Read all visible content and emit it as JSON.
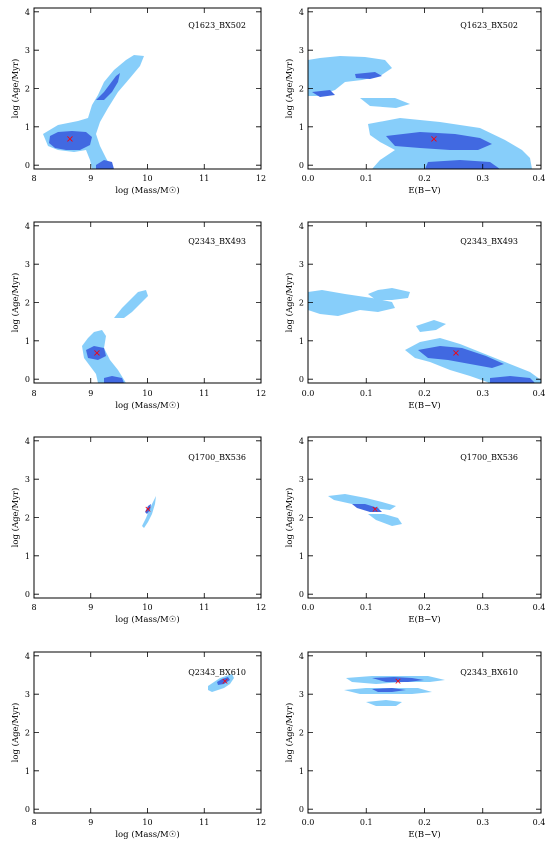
{
  "colors": {
    "contour_outer": "#87CEFA",
    "contour_inner": "#4169E1",
    "best_fit_marker": "#FF0000",
    "axes": "#000000"
  },
  "chart_data": [
    {
      "type": "scatter",
      "title": "Q1623_BX502",
      "xlabel": "log (Mass/M☉)",
      "ylabel": "log (Age/Myr)",
      "xlim": [
        8,
        12
      ],
      "ylim": [
        -0.1,
        4.1
      ],
      "xticks": [
        8,
        9,
        10,
        11,
        12
      ],
      "yticks": [
        0,
        1,
        2,
        3,
        4
      ],
      "best_fit": [
        8.65,
        0.72
      ],
      "contours_68": [
        [
          8.35,
          0.65
        ],
        [
          9.0,
          0.8
        ],
        [
          9.3,
          2.0
        ],
        [
          9.55,
          2.5
        ]
      ],
      "contours_95": [
        [
          8.3,
          0.7
        ],
        [
          9.3,
          1.95
        ],
        [
          9.8,
          2.5
        ],
        [
          9.6,
          0.1
        ]
      ]
    },
    {
      "type": "scatter",
      "title": "Q1623_BX502",
      "xlabel": "E(B−V)",
      "ylabel": "log (Age/Myr)",
      "xlim": [
        0.0,
        0.4
      ],
      "ylim": [
        -0.1,
        4.1
      ],
      "xticks": [
        0.0,
        0.1,
        0.2,
        0.3,
        0.4
      ],
      "yticks": [
        0,
        1,
        2,
        3,
        4
      ],
      "best_fit": [
        0.225,
        0.75
      ],
      "contours_68": [
        [
          0.22,
          0.72
        ],
        [
          0.12,
          2.5
        ],
        [
          0.02,
          1.9
        ]
      ],
      "contours_95": [
        [
          0.25,
          0.8
        ],
        [
          0.12,
          2.4
        ],
        [
          0.3,
          0.1
        ]
      ]
    },
    {
      "type": "scatter",
      "title": "Q2343_BX493",
      "xlabel": "log (Mass/M☉)",
      "ylabel": "log (Age/Myr)",
      "xlim": [
        8,
        12
      ],
      "ylim": [
        -0.1,
        4.1
      ],
      "xticks": [
        8,
        9,
        10,
        11,
        12
      ],
      "yticks": [
        0,
        1,
        2,
        3,
        4
      ],
      "best_fit": [
        9.1,
        0.78
      ],
      "contours_68": [
        [
          9.1,
          0.78
        ],
        [
          9.4,
          0.05
        ]
      ],
      "contours_95": [
        [
          9.15,
          0.9
        ],
        [
          9.75,
          2.0
        ]
      ]
    },
    {
      "type": "scatter",
      "title": "Q2343_BX493",
      "xlabel": "E(B−V)",
      "ylabel": "log (Age/Myr)",
      "xlim": [
        0.0,
        0.4
      ],
      "ylim": [
        -0.1,
        4.1
      ],
      "xticks": [
        0.0,
        0.1,
        0.2,
        0.3,
        0.4
      ],
      "yticks": [
        0,
        1,
        2,
        3,
        4
      ],
      "best_fit": [
        0.255,
        0.78
      ],
      "contours_68": [
        [
          0.25,
          0.8
        ],
        [
          0.35,
          0.05
        ]
      ],
      "contours_95": [
        [
          0.28,
          0.7
        ],
        [
          0.12,
          2.0
        ],
        [
          0.05,
          2.0
        ]
      ]
    },
    {
      "type": "scatter",
      "title": "Q1700_BX536",
      "xlabel": "log (Mass/M☉)",
      "ylabel": "log (Age/Myr)",
      "xlim": [
        8,
        12
      ],
      "ylim": [
        -0.1,
        4.1
      ],
      "xticks": [
        8,
        9,
        10,
        11,
        12
      ],
      "yticks": [
        0,
        1,
        2,
        3,
        4
      ],
      "best_fit": [
        10.45,
        2.28
      ],
      "contours_68": [
        [
          10.45,
          2.28
        ]
      ],
      "contours_95": [
        [
          10.45,
          2.2
        ]
      ]
    },
    {
      "type": "scatter",
      "title": "Q1700_BX536",
      "xlabel": "E(B−V)",
      "ylabel": "log (Age/Myr)",
      "xlim": [
        0.0,
        0.4
      ],
      "ylim": [
        -0.1,
        4.1
      ],
      "xticks": [
        0.0,
        0.1,
        0.2,
        0.3,
        0.4
      ],
      "yticks": [
        0,
        1,
        2,
        3,
        4
      ],
      "best_fit": [
        0.115,
        2.25
      ],
      "contours_68": [
        [
          0.11,
          2.28
        ]
      ],
      "contours_95": [
        [
          0.1,
          2.25
        ]
      ]
    },
    {
      "type": "scatter",
      "title": "Q2343_BX610",
      "xlabel": "log (Mass/M☉)",
      "ylabel": "log (Age/Myr)",
      "xlim": [
        8,
        12
      ],
      "ylim": [
        -0.1,
        4.1
      ],
      "xticks": [
        8,
        9,
        10,
        11,
        12
      ],
      "yticks": [
        0,
        1,
        2,
        3,
        4
      ],
      "best_fit": [
        11.35,
        3.35
      ],
      "contours_68": [
        [
          11.35,
          3.35
        ]
      ],
      "contours_95": [
        [
          11.3,
          3.3
        ]
      ]
    },
    {
      "type": "scatter",
      "title": "Q2343_BX610",
      "xlabel": "E(B−V)",
      "ylabel": "log (Age/Myr)",
      "xlim": [
        0.0,
        0.4
      ],
      "ylim": [
        -0.1,
        4.1
      ],
      "xticks": [
        0.0,
        0.1,
        0.2,
        0.3,
        0.4
      ],
      "yticks": [
        0,
        1,
        2,
        3,
        4
      ],
      "best_fit": [
        0.155,
        3.35
      ],
      "contours_68": [
        [
          0.15,
          3.38
        ]
      ],
      "contours_95": [
        [
          0.15,
          3.35
        ]
      ]
    }
  ]
}
